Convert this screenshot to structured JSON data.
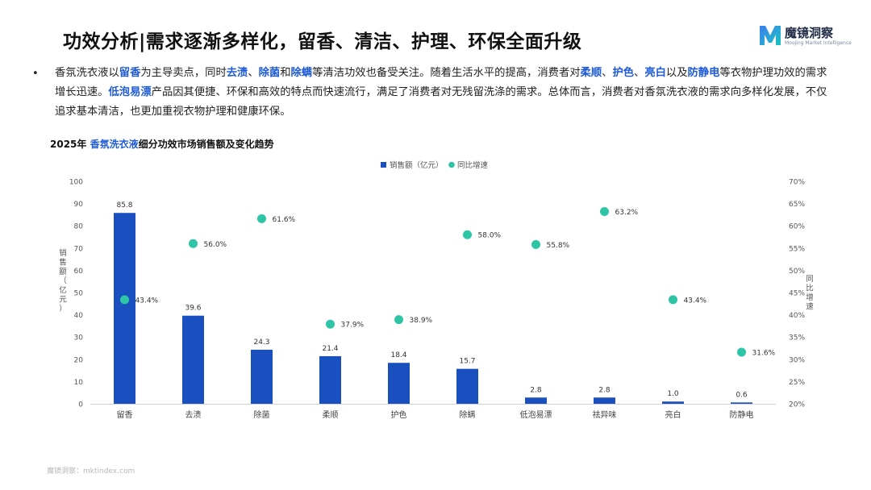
{
  "page": {
    "title": "功效分析|需求逐渐多样化，留香、清洁、护理、环保全面升级",
    "logo_cn": "魔镜洞察",
    "logo_en": "Moojing Market Intelligence",
    "bullet": "•",
    "paragraph": [
      {
        "t": "香氛洗衣液以",
        "hl": false
      },
      {
        "t": "留香",
        "hl": true
      },
      {
        "t": "为主导卖点，同时",
        "hl": false
      },
      {
        "t": "去渍",
        "hl": true
      },
      {
        "t": "、",
        "hl": false
      },
      {
        "t": "除菌",
        "hl": true
      },
      {
        "t": "和",
        "hl": false
      },
      {
        "t": "除螨",
        "hl": true
      },
      {
        "t": "等清洁功效也备受关注。随着生活水平的提高，消费者对",
        "hl": false
      },
      {
        "t": "柔顺",
        "hl": true
      },
      {
        "t": "、",
        "hl": false
      },
      {
        "t": "护色",
        "hl": true
      },
      {
        "t": "、",
        "hl": false
      },
      {
        "t": "亮白",
        "hl": true
      },
      {
        "t": "以及",
        "hl": false
      },
      {
        "t": "防静电",
        "hl": true
      },
      {
        "t": "等衣物护理功效的需求增长迅速。",
        "hl": false
      },
      {
        "t": "低泡易漂",
        "hl": true
      },
      {
        "t": "产品因其便捷、环保和高效的特点而快速流行，满足了消费者对无残留洗涤的需求。总体而言，消费者对香氛洗衣液的需求向多样化发展，不仅追求基本清洁，也更加重视衣物护理和健康环保。",
        "hl": false
      }
    ],
    "chart_title_prefix": "2025年 ",
    "chart_title_hl": "香氛洗衣液",
    "chart_title_suffix": "细分功效市场销售额及变化趋势",
    "footer": "魔镜洞察：mktindex.com"
  },
  "colors": {
    "accent": "#1f5bd6",
    "bar": "#1a4fbf",
    "dot": "#2ec4a6",
    "axis_text": "#555555"
  },
  "chart_data": {
    "type": "bar",
    "categories": [
      "留香",
      "去渍",
      "除菌",
      "柔顺",
      "护色",
      "除螨",
      "低泡易漂",
      "祛异味",
      "亮白",
      "防静电"
    ],
    "series": [
      {
        "name": "销售额（亿元）",
        "type": "bar",
        "axis": "left",
        "values": [
          85.8,
          39.6,
          24.3,
          21.4,
          18.4,
          15.7,
          2.8,
          2.8,
          1.0,
          0.6
        ],
        "labels": [
          "85.8",
          "39.6",
          "24.3",
          "21.4",
          "18.4",
          "15.7",
          "2.8",
          "2.8",
          "1.0",
          "0.6"
        ]
      },
      {
        "name": "同比增速",
        "type": "scatter",
        "axis": "right",
        "values": [
          43.4,
          56.0,
          61.6,
          37.9,
          38.9,
          58.0,
          55.8,
          63.2,
          43.4,
          31.6
        ],
        "labels": [
          "43.4%",
          "56.0%",
          "61.6%",
          "37.9%",
          "38.9%",
          "58.0%",
          "55.8%",
          "63.2%",
          "43.4%",
          "31.6%"
        ]
      }
    ],
    "ylabel": "销售额（亿元）",
    "y2label": "同比增速",
    "ylim": [
      0,
      100
    ],
    "yticks": [
      "0",
      "10",
      "20",
      "30",
      "40",
      "50",
      "60",
      "70",
      "80",
      "90",
      "100"
    ],
    "y2lim": [
      20,
      70
    ],
    "y2ticks": [
      "20%",
      "25%",
      "30%",
      "35%",
      "40%",
      "45%",
      "50%",
      "55%",
      "60%",
      "65%",
      "70%"
    ],
    "grid": false,
    "legend_position": "top-center"
  }
}
